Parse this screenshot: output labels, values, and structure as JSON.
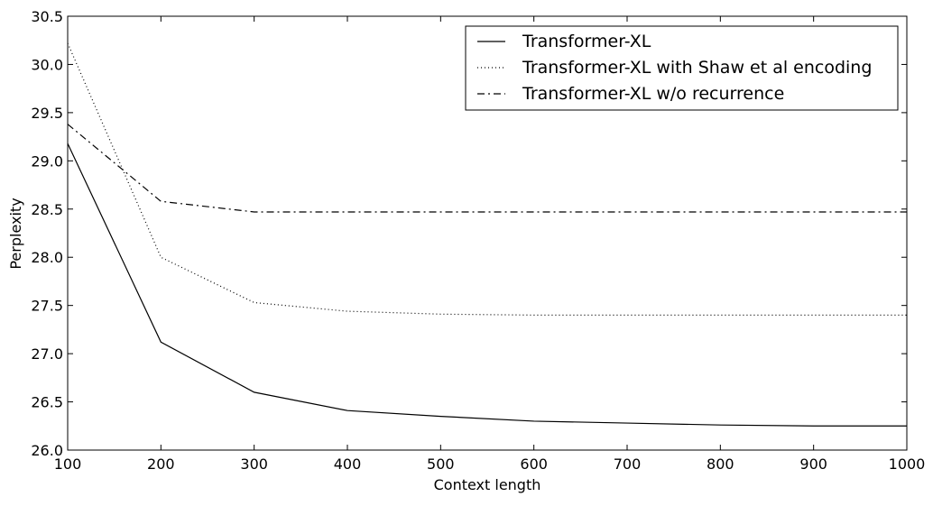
{
  "chart_data": {
    "type": "line",
    "xlabel": "Context length",
    "ylabel": "Perplexity",
    "xlim": [
      100,
      1000
    ],
    "ylim": [
      26.0,
      30.5
    ],
    "xticks": [
      100,
      200,
      300,
      400,
      500,
      600,
      700,
      800,
      900,
      1000
    ],
    "xtick_labels": [
      "100",
      "200",
      "300",
      "400",
      "500",
      "600",
      "700",
      "800",
      "900",
      "1000"
    ],
    "yticks": [
      26.0,
      26.5,
      27.0,
      27.5,
      28.0,
      28.5,
      29.0,
      29.5,
      30.0,
      30.5
    ],
    "ytick_labels": [
      "26.0",
      "26.5",
      "27.0",
      "27.5",
      "28.0",
      "28.5",
      "29.0",
      "29.5",
      "30.0",
      "30.5"
    ],
    "grid": false,
    "legend_position": "top-right",
    "x": [
      100,
      200,
      300,
      400,
      500,
      600,
      700,
      800,
      900,
      1000
    ],
    "series": [
      {
        "name": "Transformer-XL",
        "style": "solid",
        "color": "#000000",
        "values": [
          29.18,
          27.12,
          26.6,
          26.41,
          26.35,
          26.3,
          26.28,
          26.26,
          26.25,
          26.25
        ]
      },
      {
        "name": "Transformer-XL with Shaw et al encoding",
        "style": "dotted",
        "color": "#000000",
        "values": [
          30.22,
          28.0,
          27.53,
          27.44,
          27.41,
          27.4,
          27.4,
          27.4,
          27.4,
          27.4
        ]
      },
      {
        "name": "Transformer-XL w/o recurrence",
        "style": "dashdot",
        "color": "#000000",
        "values": [
          29.38,
          28.58,
          28.47,
          28.47,
          28.47,
          28.47,
          28.47,
          28.47,
          28.47,
          28.47
        ]
      }
    ]
  }
}
